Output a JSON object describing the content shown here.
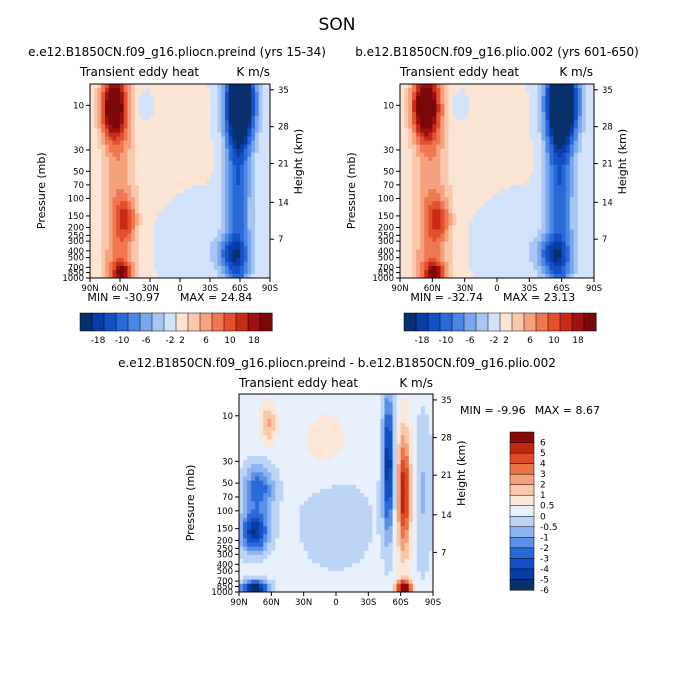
{
  "title": "SON",
  "palette_colors": [
    "#08306b",
    "#0a3ca8",
    "#1250c8",
    "#2a6ad8",
    "#4a86e4",
    "#7aa6ee",
    "#a8c6f4",
    "#d2e2fa",
    "#fbe4d4",
    "#fac8ac",
    "#f7a27e",
    "#f07850",
    "#e4502e",
    "#c82a18",
    "#a01010",
    "#7a0808"
  ],
  "diff_colors": [
    "#08306b",
    "#0a3ca8",
    "#1250c8",
    "#2a6ad8",
    "#5a90e6",
    "#8cb4f0",
    "#bcd4f6",
    "#e8f0fb",
    "#fbe6d8",
    "#f8c8aa",
    "#f4a07a",
    "#ec7448",
    "#e04a26",
    "#c02610",
    "#8a0808"
  ],
  "panels": [
    {
      "id": "top-left",
      "title": "e.e12.B1850CN.f09_g16.pliocn.preind (yrs 15-34)",
      "left_label": "Transient eddy heat",
      "right_label": "K m/s",
      "min_label": "MIN = -30.97",
      "max_label": "MAX = 24.84"
    },
    {
      "id": "top-right",
      "title": "b.e12.B1850CN.f09_g16.plio.002 (yrs 601-650)",
      "left_label": "Transient eddy heat",
      "right_label": "K m/s",
      "min_label": "MIN = -32.74",
      "max_label": "MAX = 23.13"
    },
    {
      "id": "bottom",
      "title": "e.e12.B1850CN.f09_g16.pliocn.preind - b.e12.B1850CN.f09_g16.plio.002",
      "left_label": "Transient eddy heat",
      "right_label": "K m/s",
      "min_label": "MIN = -9.96",
      "max_label": "MAX = 8.67"
    }
  ],
  "chart_data": [
    {
      "type": "heatmap",
      "panel": "top-left",
      "title": "e.e12.B1850CN.f09_g16.pliocn.preind (yrs 15-34)",
      "xlabel": "",
      "ylabel": "Pressure (mb)",
      "y2label": "Height (km)",
      "x_ticks": [
        "90N",
        "60N",
        "30N",
        "0",
        "30S",
        "60S",
        "90S"
      ],
      "y_ticks": [
        "10",
        "30",
        "50",
        "70",
        "100",
        "150",
        "200",
        "250",
        "300",
        "400",
        "500",
        "700",
        "850",
        "1000"
      ],
      "y2_ticks": [
        "35",
        "28",
        "21",
        "14",
        "7"
      ],
      "colorbar_labels": [
        "-18",
        "-10",
        "-6",
        "-2",
        "2",
        "6",
        "10",
        "18"
      ],
      "min": -30.97,
      "max": 24.84
    },
    {
      "type": "heatmap",
      "panel": "top-right",
      "title": "b.e12.B1850CN.f09_g16.plio.002 (yrs 601-650)",
      "xlabel": "",
      "ylabel": "Pressure (mb)",
      "y2label": "Height (km)",
      "x_ticks": [
        "90N",
        "60N",
        "30N",
        "0",
        "30S",
        "60S",
        "90S"
      ],
      "y_ticks": [
        "10",
        "30",
        "50",
        "70",
        "100",
        "150",
        "200",
        "250",
        "300",
        "400",
        "500",
        "700",
        "850",
        "1000"
      ],
      "y2_ticks": [
        "35",
        "28",
        "21",
        "14",
        "7"
      ],
      "colorbar_labels": [
        "-18",
        "-10",
        "-6",
        "-2",
        "2",
        "6",
        "10",
        "18"
      ],
      "min": -32.74,
      "max": 23.13
    },
    {
      "type": "heatmap",
      "panel": "bottom",
      "title": "e.e12.B1850CN.f09_g16.pliocn.preind - b.e12.B1850CN.f09_g16.plio.002",
      "xlabel": "",
      "ylabel": "Pressure (mb)",
      "y2label": "Height (km)",
      "x_ticks": [
        "90N",
        "60N",
        "30N",
        "0",
        "30S",
        "60S",
        "90S"
      ],
      "y_ticks": [
        "10",
        "30",
        "50",
        "70",
        "100",
        "150",
        "200",
        "250",
        "300",
        "400",
        "500",
        "700",
        "850",
        "1000"
      ],
      "y2_ticks": [
        "35",
        "28",
        "21",
        "14",
        "7"
      ],
      "colorbar_labels": [
        "6",
        "5",
        "4",
        "3",
        "2",
        "1",
        "0.5",
        "0",
        "-0.5",
        "-1",
        "-2",
        "-3",
        "-4",
        "-5",
        "-6"
      ],
      "min": -9.96,
      "max": 8.67
    }
  ]
}
